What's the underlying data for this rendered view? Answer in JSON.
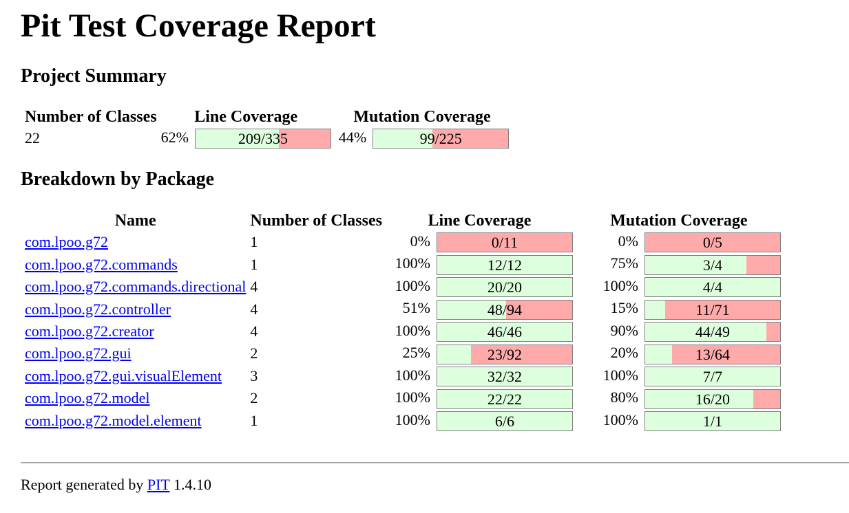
{
  "title": "Pit Test Coverage Report",
  "project_summary": {
    "heading": "Project Summary",
    "headers": {
      "classes": "Number of Classes",
      "line": "Line Coverage",
      "mutation": "Mutation Coverage"
    },
    "classes": "22",
    "line": {
      "pct": "62%",
      "legend": "209/335",
      "fraction": 0.62
    },
    "mutation": {
      "pct": "44%",
      "legend": "99/225",
      "fraction": 0.44
    }
  },
  "breakdown": {
    "heading": "Breakdown by Package",
    "headers": {
      "name": "Name",
      "classes": "Number of Classes",
      "line": "Line Coverage",
      "mutation": "Mutation Coverage"
    },
    "rows": [
      {
        "name": "com.lpoo.g72",
        "classes": "1",
        "line_pct": "0%",
        "line_legend": "0/11",
        "line_fraction": 0.0,
        "mut_pct": "0%",
        "mut_legend": "0/5",
        "mut_fraction": 0.0
      },
      {
        "name": "com.lpoo.g72.commands",
        "classes": "1",
        "line_pct": "100%",
        "line_legend": "12/12",
        "line_fraction": 1.0,
        "mut_pct": "75%",
        "mut_legend": "3/4",
        "mut_fraction": 0.75
      },
      {
        "name": "com.lpoo.g72.commands.directional",
        "classes": "4",
        "line_pct": "100%",
        "line_legend": "20/20",
        "line_fraction": 1.0,
        "mut_pct": "100%",
        "mut_legend": "4/4",
        "mut_fraction": 1.0
      },
      {
        "name": "com.lpoo.g72.controller",
        "classes": "4",
        "line_pct": "51%",
        "line_legend": "48/94",
        "line_fraction": 0.51,
        "mut_pct": "15%",
        "mut_legend": "11/71",
        "mut_fraction": 0.15
      },
      {
        "name": "com.lpoo.g72.creator",
        "classes": "4",
        "line_pct": "100%",
        "line_legend": "46/46",
        "line_fraction": 1.0,
        "mut_pct": "90%",
        "mut_legend": "44/49",
        "mut_fraction": 0.9
      },
      {
        "name": "com.lpoo.g72.gui",
        "classes": "2",
        "line_pct": "25%",
        "line_legend": "23/92",
        "line_fraction": 0.25,
        "mut_pct": "20%",
        "mut_legend": "13/64",
        "mut_fraction": 0.2
      },
      {
        "name": "com.lpoo.g72.gui.visualElement",
        "classes": "3",
        "line_pct": "100%",
        "line_legend": "32/32",
        "line_fraction": 1.0,
        "mut_pct": "100%",
        "mut_legend": "7/7",
        "mut_fraction": 1.0
      },
      {
        "name": "com.lpoo.g72.model",
        "classes": "2",
        "line_pct": "100%",
        "line_legend": "22/22",
        "line_fraction": 1.0,
        "mut_pct": "80%",
        "mut_legend": "16/20",
        "mut_fraction": 0.8
      },
      {
        "name": "com.lpoo.g72.model.element",
        "classes": "1",
        "line_pct": "100%",
        "line_legend": "6/6",
        "line_fraction": 1.0,
        "mut_pct": "100%",
        "mut_legend": "1/1",
        "mut_fraction": 1.0
      }
    ]
  },
  "footer": {
    "prefix": "Report generated by",
    "link": "PIT",
    "version": "1.4.10"
  },
  "colors": {
    "covered": "#ddffdd",
    "uncovered": "#ffaaaa",
    "link": "#0000ee"
  }
}
